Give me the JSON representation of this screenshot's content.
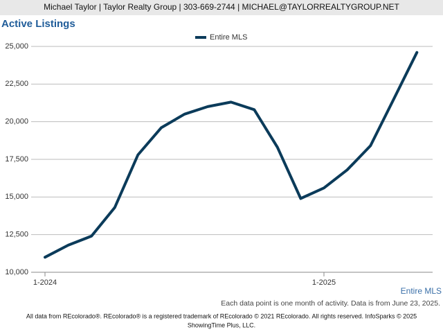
{
  "header": "Michael Taylor | Taylor Realty Group | 303-669-2744 | MICHAEL@TAYLORREALTYGROUP.NET",
  "chart_data": {
    "type": "line",
    "title": "Active Listings",
    "categories": [
      "1-2024",
      null,
      null,
      null,
      null,
      null,
      null,
      null,
      null,
      null,
      null,
      null,
      "1-2025",
      null,
      null,
      null,
      null
    ],
    "series": [
      {
        "name": "Entire MLS",
        "color": "#0b3b5a",
        "values": [
          11000,
          11800,
          12400,
          14300,
          17800,
          19600,
          20500,
          21000,
          21300,
          20800,
          18300,
          14900,
          15600,
          16800,
          18400,
          21500,
          24600
        ]
      }
    ],
    "ylim": [
      10000,
      25000
    ],
    "yticks": [
      {
        "value": 10000,
        "label": "10,000"
      },
      {
        "value": 12500,
        "label": "12,500"
      },
      {
        "value": 15000,
        "label": "15,000"
      },
      {
        "value": 17500,
        "label": "17,500"
      },
      {
        "value": 20000,
        "label": "20,000"
      },
      {
        "value": 22500,
        "label": "22,500"
      },
      {
        "value": 25000,
        "label": "25,000"
      }
    ],
    "grid": true,
    "legend": "top",
    "corner_label": "Entire MLS",
    "note": "Each data point is one month of activity. Data is from June 23, 2025.",
    "footer": [
      "All data from REcolorado®. REcolorado® is a registered trademark of REcolorado © 2021 REcolorado. All rights reserved. InfoSparks © 2025",
      "ShowingTime Plus, LLC."
    ]
  }
}
